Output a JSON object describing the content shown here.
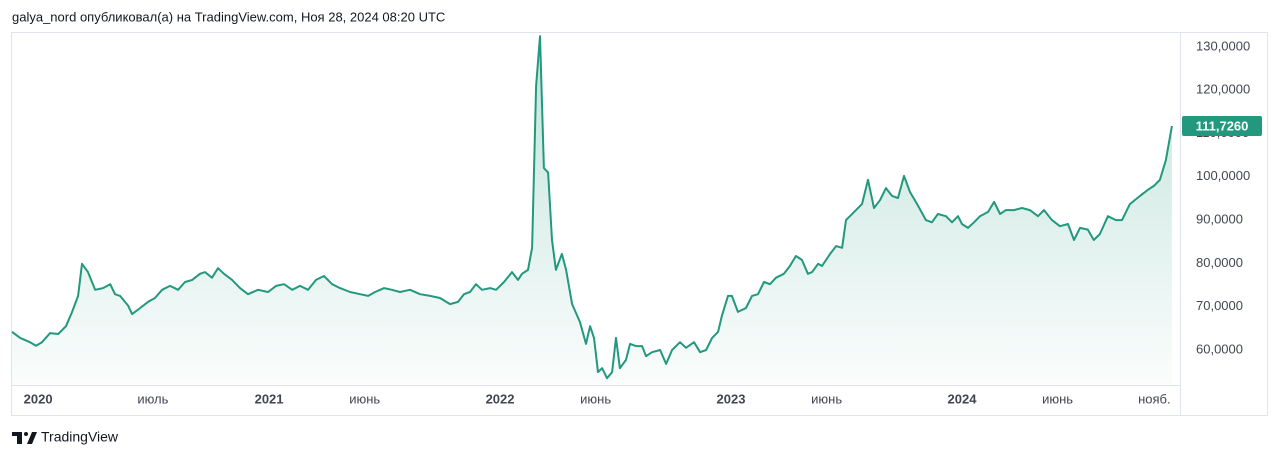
{
  "header": "galya_nord опубликовал(а) на TradingView.com, Ноя 28, 2024 08:20 UTC",
  "footer": "TradingView",
  "chart_data": {
    "type": "area",
    "price_label": "111,7260",
    "grid": false,
    "xlim": [
      2019.887,
      2024.944
    ],
    "ylim": [
      51.92,
      133.44
    ],
    "xticks": [
      {
        "value": 2020,
        "label": "2020"
      },
      {
        "value": 2020.497,
        "label": "июль"
      },
      {
        "value": 2021,
        "label": "2021"
      },
      {
        "value": 2021.414,
        "label": "июнь"
      },
      {
        "value": 2022,
        "label": "2022"
      },
      {
        "value": 2022.414,
        "label": "июнь"
      },
      {
        "value": 2023,
        "label": "2023"
      },
      {
        "value": 2023.414,
        "label": "июнь"
      },
      {
        "value": 2024,
        "label": "2024"
      },
      {
        "value": 2024.414,
        "label": "июнь"
      },
      {
        "value": 2024.833,
        "label": "нояб."
      }
    ],
    "yticks": [
      {
        "value": 60,
        "label": "60,0000"
      },
      {
        "value": 70,
        "label": "70,0000"
      },
      {
        "value": 80,
        "label": "80,0000"
      },
      {
        "value": 90,
        "label": "90,0000"
      },
      {
        "value": 100,
        "label": "100,0000"
      },
      {
        "value": 110,
        "label": "110,0000"
      },
      {
        "value": 120,
        "label": "120,0000"
      },
      {
        "value": 130,
        "label": "130,0000"
      }
    ],
    "x": [
      2019.887,
      2019.922,
      2019.965,
      2019.991,
      2020.017,
      2020.052,
      2020.087,
      2020.121,
      2020.147,
      2020.173,
      2020.19,
      2020.216,
      2020.247,
      2020.281,
      2020.312,
      2020.333,
      2020.355,
      2020.39,
      2020.407,
      2020.442,
      2020.476,
      2020.506,
      2020.537,
      2020.571,
      2020.606,
      2020.636,
      2020.667,
      2020.701,
      2020.723,
      2020.753,
      2020.779,
      2020.805,
      2020.84,
      2020.874,
      2020.909,
      2020.952,
      2020.996,
      2021.03,
      2021.065,
      2021.1,
      2021.134,
      2021.169,
      2021.203,
      2021.238,
      2021.273,
      2021.307,
      2021.351,
      2021.394,
      2021.429,
      2021.459,
      2021.498,
      2021.532,
      2021.567,
      2021.61,
      2021.654,
      2021.697,
      2021.74,
      2021.784,
      2021.818,
      2021.844,
      2021.87,
      2021.896,
      2021.922,
      2021.957,
      2021.983,
      2022.017,
      2022.052,
      2022.078,
      2022.095,
      2022.121,
      2022.139,
      2022.156,
      2022.173,
      2022.19,
      2022.208,
      2022.225,
      2022.242,
      2022.268,
      2022.286,
      2022.312,
      2022.346,
      2022.372,
      2022.39,
      2022.407,
      2022.424,
      2022.442,
      2022.463,
      2022.485,
      2022.502,
      2022.519,
      2022.545,
      2022.563,
      2022.589,
      2022.615,
      2022.632,
      2022.658,
      2022.693,
      2022.719,
      2022.745,
      2022.779,
      2022.805,
      2022.84,
      2022.866,
      2022.892,
      2022.918,
      2022.944,
      2022.961,
      2022.987,
      2023.004,
      2023.03,
      2023.065,
      2023.091,
      2023.117,
      2023.143,
      2023.169,
      2023.195,
      2023.229,
      2023.255,
      2023.281,
      2023.307,
      2023.333,
      2023.351,
      2023.377,
      2023.394,
      2023.429,
      2023.455,
      2023.481,
      2023.498,
      2023.515,
      2023.541,
      2023.567,
      2023.593,
      2023.619,
      2023.645,
      2023.671,
      2023.697,
      2023.723,
      2023.749,
      2023.775,
      2023.81,
      2023.844,
      2023.87,
      2023.896,
      2023.931,
      2023.957,
      2023.983,
      2024.0,
      2024.026,
      2024.052,
      2024.078,
      2024.113,
      2024.139,
      2024.165,
      2024.19,
      2024.225,
      2024.26,
      2024.294,
      2024.329,
      2024.355,
      2024.39,
      2024.424,
      2024.459,
      2024.485,
      2024.511,
      2024.545,
      2024.571,
      2024.597,
      2024.632,
      2024.667,
      2024.693,
      2024.727,
      2024.771,
      2024.805,
      2024.831,
      2024.857,
      2024.883,
      2024.909
    ],
    "series": [
      {
        "color": "#22997e",
        "values": [
          64.2,
          62.8,
          61.8,
          61,
          61.8,
          63.9,
          63.7,
          65.5,
          68.8,
          72.5,
          79.9,
          78,
          73.9,
          74.3,
          75.2,
          72.9,
          72.5,
          70.2,
          68.3,
          69.7,
          71.1,
          72,
          73.9,
          74.8,
          73.9,
          75.7,
          76.2,
          77.6,
          78,
          76.7,
          78.9,
          77.6,
          76.2,
          74.3,
          72.9,
          73.9,
          73.4,
          74.8,
          75.2,
          73.9,
          74.8,
          73.9,
          76.2,
          77.1,
          75.2,
          74.3,
          73.4,
          72.9,
          72.5,
          73.4,
          74.3,
          73.9,
          73.4,
          73.9,
          72.9,
          72.5,
          72,
          70.6,
          71.1,
          72.9,
          73.4,
          75.2,
          73.9,
          74.3,
          73.9,
          75.7,
          78,
          76.2,
          77.6,
          78.5,
          83.6,
          121,
          132.5,
          102,
          101,
          85.4,
          78.5,
          82.2,
          78.5,
          70.6,
          66.5,
          61.4,
          65.5,
          62.8,
          54.9,
          55.8,
          53.5,
          54.9,
          62.8,
          55.8,
          57.7,
          61.4,
          60.9,
          60.9,
          58.6,
          59.5,
          60,
          56.8,
          60,
          61.8,
          60.5,
          61.8,
          59.5,
          60,
          62.8,
          64.2,
          68,
          72.5,
          72.5,
          68.8,
          69.7,
          72.5,
          72.9,
          75.7,
          75.2,
          76.7,
          77.6,
          79.4,
          81.7,
          80.8,
          77.6,
          78,
          79.9,
          79.4,
          82.2,
          84,
          83.6,
          90,
          90.9,
          92.3,
          93.7,
          99.3,
          92.8,
          94.6,
          97.4,
          95.6,
          95.1,
          100.2,
          96.5,
          93.3,
          90,
          89.5,
          91.4,
          90.9,
          89.5,
          90.9,
          89.1,
          88.2,
          89.5,
          90.9,
          91.9,
          94.2,
          91.4,
          92.3,
          92.3,
          92.8,
          92.3,
          90.9,
          92.3,
          90,
          88.6,
          89.1,
          85.4,
          88.2,
          87.8,
          85.4,
          86.8,
          90.9,
          90,
          90,
          93.7,
          95.6,
          97,
          97.9,
          99.3,
          103.9,
          111.726
        ]
      }
    ]
  }
}
